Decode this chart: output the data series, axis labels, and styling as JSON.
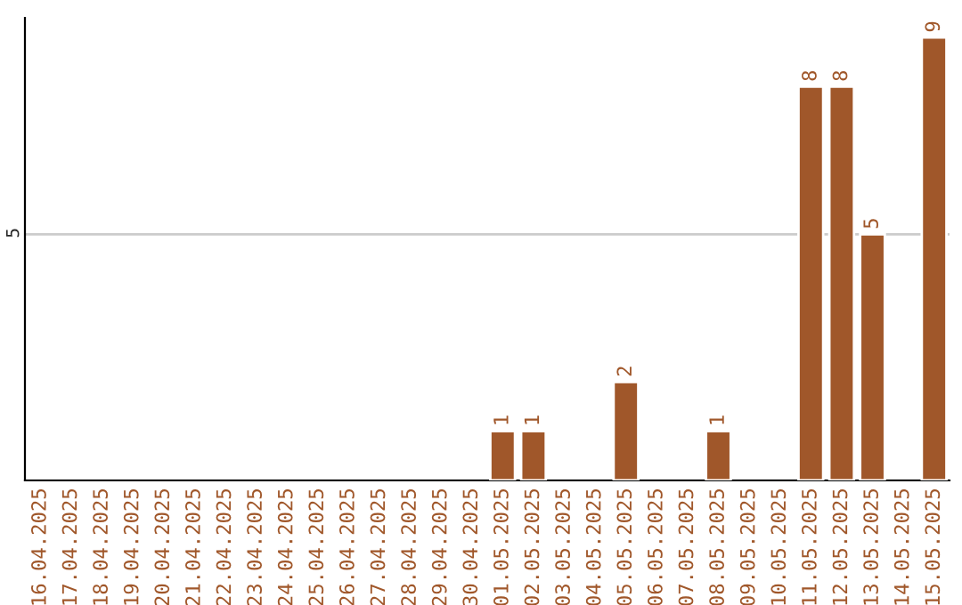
{
  "chart_data": {
    "type": "bar",
    "categories": [
      "16.04.2025",
      "17.04.2025",
      "18.04.2025",
      "19.04.2025",
      "20.04.2025",
      "21.04.2025",
      "22.04.2025",
      "23.04.2025",
      "24.04.2025",
      "25.04.2025",
      "26.04.2025",
      "27.04.2025",
      "28.04.2025",
      "29.04.2025",
      "30.04.2025",
      "01.05.2025",
      "02.05.2025",
      "03.05.2025",
      "04.05.2025",
      "05.05.2025",
      "06.05.2025",
      "07.05.2025",
      "08.05.2025",
      "09.05.2025",
      "10.05.2025",
      "11.05.2025",
      "12.05.2025",
      "13.05.2025",
      "14.05.2025",
      "15.05.2025"
    ],
    "values": [
      null,
      null,
      null,
      null,
      null,
      null,
      null,
      null,
      null,
      null,
      null,
      null,
      null,
      null,
      null,
      1,
      1,
      null,
      null,
      2,
      null,
      null,
      1,
      null,
      null,
      8,
      8,
      5,
      null,
      9
    ],
    "value_labels": [
      null,
      null,
      null,
      null,
      null,
      null,
      null,
      null,
      null,
      null,
      null,
      null,
      null,
      null,
      null,
      "1",
      "1",
      null,
      null,
      "2",
      null,
      null,
      "1",
      null,
      null,
      "8",
      "8",
      "5",
      null,
      "9"
    ],
    "color": "#a0572a",
    "ylim": [
      0,
      9.4
    ],
    "yticks": [
      {
        "value": 0,
        "label": null
      },
      5
    ],
    "grid": "y",
    "legend": false
  }
}
